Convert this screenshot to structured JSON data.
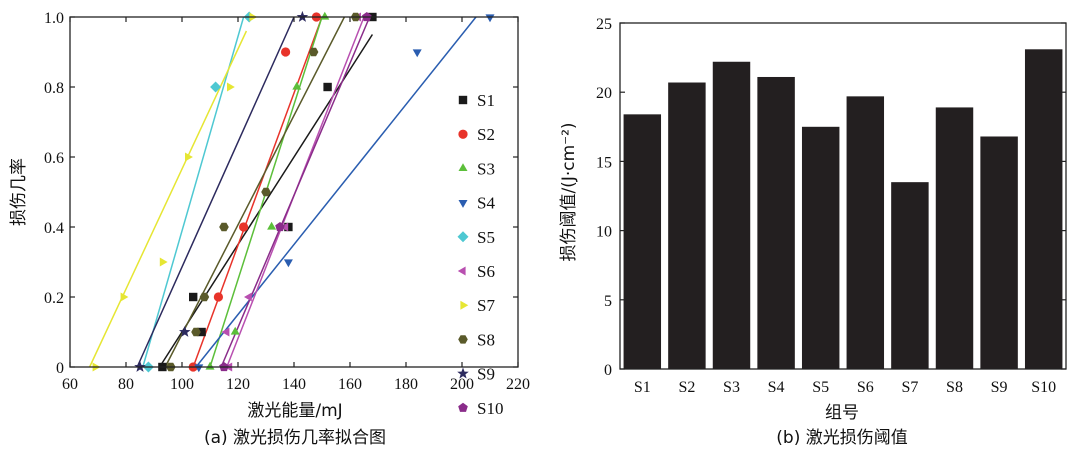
{
  "panel_a": {
    "caption": "(a) 激光损伤几率拟合图",
    "chart_data": {
      "type": "scatter",
      "xlabel": "激光能量/mJ",
      "ylabel": "损伤几率",
      "xlim": [
        60,
        220
      ],
      "ylim": [
        0,
        1.0
      ],
      "xticks": [
        "60",
        "80",
        "100",
        "120",
        "140",
        "160",
        "180",
        "200",
        "220"
      ],
      "yticks": [
        "0",
        "0.2",
        "0.4",
        "0.6",
        "0.8",
        "1.0"
      ],
      "legend_position": "right",
      "series": [
        {
          "name": "S1",
          "color": "#1a1a1a",
          "marker": "square",
          "points": [
            [
              93,
              0
            ],
            [
              104,
              0.2
            ],
            [
              107,
              0.1
            ],
            [
              138,
              0.4
            ],
            [
              152,
              0.8
            ],
            [
              168,
              1.0
            ]
          ],
          "fit": [
            [
              92,
              0
            ],
            [
              168,
              0.95
            ]
          ]
        },
        {
          "name": "S2",
          "color": "#e8332a",
          "marker": "circle",
          "points": [
            [
              104,
              0
            ],
            [
              113,
              0.2
            ],
            [
              122,
              0.4
            ],
            [
              137,
              0.9
            ],
            [
              148,
              1.0
            ]
          ],
          "fit": [
            [
              104,
              0
            ],
            [
              150,
              1.0
            ]
          ]
        },
        {
          "name": "S3",
          "color": "#5cbf3a",
          "marker": "triangle-up",
          "points": [
            [
              110,
              0
            ],
            [
              119,
              0.1
            ],
            [
              132,
              0.4
            ],
            [
              141,
              0.8
            ],
            [
              151,
              1.0
            ]
          ],
          "fit": [
            [
              110,
              0
            ],
            [
              150,
              1.0
            ]
          ]
        },
        {
          "name": "S4",
          "color": "#2a5db0",
          "marker": "triangle-down",
          "points": [
            [
              106,
              0
            ],
            [
              138,
              0.3
            ],
            [
              184,
              0.9
            ],
            [
              210,
              1.0
            ]
          ],
          "fit": [
            [
              105,
              0
            ],
            [
              205,
              1.0
            ]
          ]
        },
        {
          "name": "S5",
          "color": "#4ec8d2",
          "marker": "diamond",
          "points": [
            [
              88,
              0
            ],
            [
              112,
              0.8
            ],
            [
              124,
              1.0
            ]
          ],
          "fit": [
            [
              86,
              0
            ],
            [
              122,
              1.0
            ]
          ]
        },
        {
          "name": "S6",
          "color": "#b84fb0",
          "marker": "triangle-left",
          "points": [
            [
              117,
              0
            ],
            [
              116,
              0.1
            ],
            [
              124,
              0.2
            ],
            [
              137,
              0.4
            ],
            [
              163,
              1.0
            ]
          ],
          "fit": [
            [
              116,
              0
            ],
            [
              165,
              1.0
            ]
          ]
        },
        {
          "name": "S7",
          "color": "#e6e633",
          "marker": "triangle-right",
          "points": [
            [
              69,
              0
            ],
            [
              79,
              0.2
            ],
            [
              93,
              0.3
            ],
            [
              102,
              0.6
            ],
            [
              117,
              0.8
            ],
            [
              125,
              1.0
            ]
          ],
          "fit": [
            [
              67,
              0
            ],
            [
              123,
              0.96
            ]
          ]
        },
        {
          "name": "S8",
          "color": "#5a5a2a",
          "marker": "hexagon",
          "points": [
            [
              96,
              0
            ],
            [
              105,
              0.1
            ],
            [
              108,
              0.2
            ],
            [
              115,
              0.4
            ],
            [
              130,
              0.5
            ],
            [
              147,
              0.9
            ],
            [
              162,
              1.0
            ]
          ],
          "fit": [
            [
              94,
              0
            ],
            [
              158,
              1.0
            ]
          ]
        },
        {
          "name": "S9",
          "color": "#2c2a5e",
          "marker": "star",
          "points": [
            [
              85,
              0
            ],
            [
              101,
              0.1
            ],
            [
              143,
              1.0
            ]
          ],
          "fit": [
            [
              84,
              0
            ],
            [
              140,
              1.0
            ]
          ]
        },
        {
          "name": "S10",
          "color": "#8a2c8a",
          "marker": "pentagon",
          "points": [
            [
              115,
              0
            ],
            [
              135,
              0.4
            ],
            [
              166,
              1.0
            ]
          ],
          "fit": [
            [
              114,
              0
            ],
            [
              167,
              1.0
            ]
          ]
        }
      ]
    }
  },
  "panel_b": {
    "caption": "(b) 激光损伤阈值",
    "chart_data": {
      "type": "bar",
      "xlabel": "组号",
      "ylabel": "损伤阈值/(J·cm⁻²)",
      "ylim": [
        0,
        25
      ],
      "yticks": [
        "0",
        "5",
        "10",
        "15",
        "20",
        "25"
      ],
      "categories": [
        "S1",
        "S2",
        "S3",
        "S4",
        "S5",
        "S6",
        "S7",
        "S8",
        "S9",
        "S10"
      ],
      "values": [
        18.4,
        20.7,
        22.2,
        21.1,
        17.5,
        19.7,
        13.5,
        18.9,
        16.8,
        23.1
      ],
      "bar_color": "#231f20"
    }
  }
}
